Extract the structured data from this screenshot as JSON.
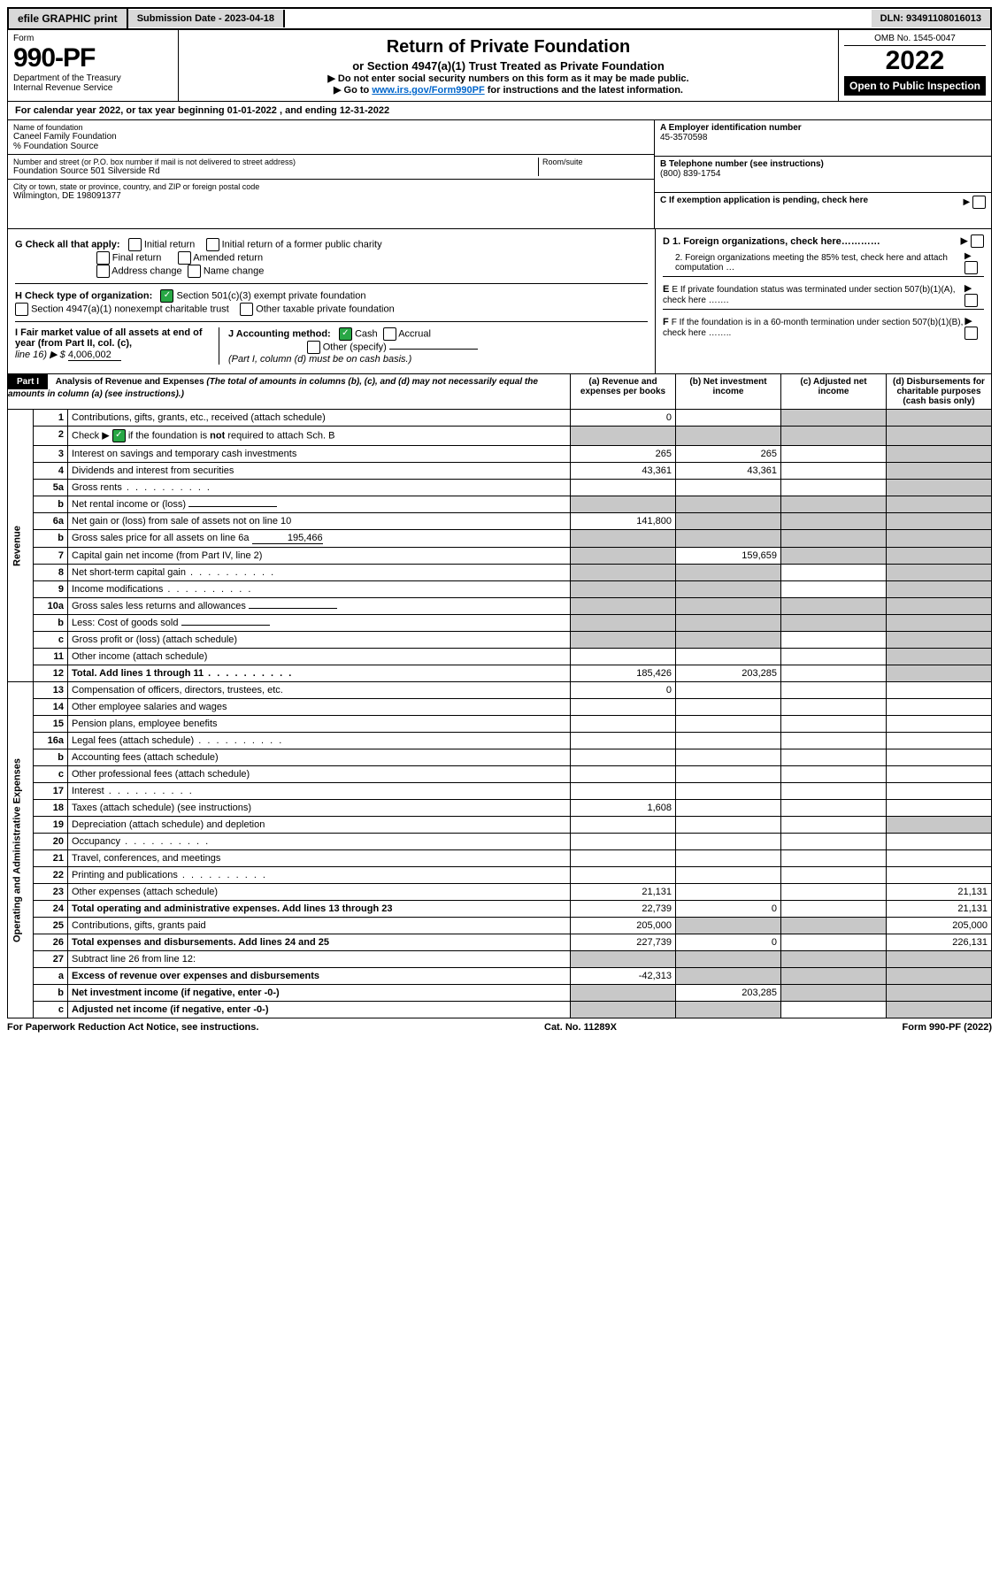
{
  "topbar": {
    "efile": "efile GRAPHIC print",
    "submission_label": "Submission Date - 2023-04-18",
    "dln": "DLN: 93491108016013"
  },
  "header": {
    "form_label": "Form",
    "form_number": "990-PF",
    "dept": "Department of the Treasury",
    "irs": "Internal Revenue Service",
    "title": "Return of Private Foundation",
    "subtitle": "or Section 4947(a)(1) Trust Treated as Private Foundation",
    "note1": "▶ Do not enter social security numbers on this form as it may be made public.",
    "note2_pre": "▶ Go to ",
    "note2_link": "www.irs.gov/Form990PF",
    "note2_post": " for instructions and the latest information.",
    "omb": "OMB No. 1545-0047",
    "year": "2022",
    "open": "Open to Public Inspection"
  },
  "calendar": "For calendar year 2022, or tax year beginning 01-01-2022 , and ending 12-31-2022",
  "info": {
    "name_lbl": "Name of foundation",
    "name": "Caneel Family Foundation",
    "pct": "% Foundation Source",
    "addr_lbl": "Number and street (or P.O. box number if mail is not delivered to street address)",
    "addr": "Foundation Source 501 Silverside Rd",
    "room_lbl": "Room/suite",
    "city_lbl": "City or town, state or province, country, and ZIP or foreign postal code",
    "city": "Wilmington, DE 198091377",
    "a_lbl": "A Employer identification number",
    "a_val": "45-3570598",
    "b_lbl": "B Telephone number (see instructions)",
    "b_val": "(800) 839-1754",
    "c_lbl": "C If exemption application is pending, check here"
  },
  "g": {
    "label": "G Check all that apply:",
    "initial": "Initial return",
    "final": "Final return",
    "addr": "Address change",
    "initial_former": "Initial return of a former public charity",
    "amended": "Amended return",
    "name": "Name change"
  },
  "h": {
    "label": "H Check type of organization:",
    "opt1": "Section 501(c)(3) exempt private foundation",
    "opt2": "Section 4947(a)(1) nonexempt charitable trust",
    "opt3": "Other taxable private foundation"
  },
  "d": {
    "d1": "D 1. Foreign organizations, check here…………",
    "d2": "2. Foreign organizations meeting the 85% test, check here and attach computation …",
    "e": "E If private foundation status was terminated under section 507(b)(1)(A), check here …….",
    "f": "F If the foundation is in a 60-month termination under section 507(b)(1)(B), check here …….."
  },
  "i": {
    "label": "I Fair market value of all assets at end of year (from Part II, col. (c),",
    "line16": "line 16) ▶ $",
    "val": "4,006,002"
  },
  "j": {
    "label": "J Accounting method:",
    "cash": "Cash",
    "accrual": "Accrual",
    "other": "Other (specify)",
    "note": "(Part I, column (d) must be on cash basis.)"
  },
  "part1": {
    "hdr": "Part I",
    "title": "Analysis of Revenue and Expenses",
    "note": " (The total of amounts in columns (b), (c), and (d) may not necessarily equal the amounts in column (a) (see instructions).)",
    "col_a": "(a) Revenue and expenses per books",
    "col_b": "(b) Net investment income",
    "col_c": "(c) Adjusted net income",
    "col_d": "(d) Disbursements for charitable purposes (cash basis only)"
  },
  "sections": {
    "revenue": "Revenue",
    "expenses": "Operating and Administrative Expenses"
  },
  "rows": [
    {
      "n": "1",
      "d": "Contributions, gifts, grants, etc., received (attach schedule)",
      "a": "0",
      "b": "",
      "c": "g",
      "dd": "g"
    },
    {
      "n": "2",
      "d": "Check ▶ ☑ if the foundation is not required to attach Sch. B",
      "a": "g",
      "b": "g",
      "c": "g",
      "dd": "g",
      "bold": false,
      "check": true
    },
    {
      "n": "3",
      "d": "Interest on savings and temporary cash investments",
      "a": "265",
      "b": "265",
      "c": "",
      "dd": "g"
    },
    {
      "n": "4",
      "d": "Dividends and interest from securities",
      "a": "43,361",
      "b": "43,361",
      "c": "",
      "dd": "g"
    },
    {
      "n": "5a",
      "d": "Gross rents",
      "a": "",
      "b": "",
      "c": "",
      "dd": "g",
      "dots": true
    },
    {
      "n": "b",
      "d": "Net rental income or (loss)",
      "a": "g",
      "b": "g",
      "c": "g",
      "dd": "g",
      "inline_ul": true
    },
    {
      "n": "6a",
      "d": "Net gain or (loss) from sale of assets not on line 10",
      "a": "141,800",
      "b": "g",
      "c": "g",
      "dd": "g"
    },
    {
      "n": "b",
      "d": "Gross sales price for all assets on line 6a",
      "a": "g",
      "b": "g",
      "c": "g",
      "dd": "g",
      "inline_val": "195,466"
    },
    {
      "n": "7",
      "d": "Capital gain net income (from Part IV, line 2)",
      "a": "g",
      "b": "159,659",
      "c": "g",
      "dd": "g"
    },
    {
      "n": "8",
      "d": "Net short-term capital gain",
      "a": "g",
      "b": "g",
      "c": "",
      "dd": "g",
      "dots": true
    },
    {
      "n": "9",
      "d": "Income modifications",
      "a": "g",
      "b": "g",
      "c": "",
      "dd": "g",
      "dots": true
    },
    {
      "n": "10a",
      "d": "Gross sales less returns and allowances",
      "a": "g",
      "b": "g",
      "c": "g",
      "dd": "g",
      "inline_ul": true
    },
    {
      "n": "b",
      "d": "Less: Cost of goods sold",
      "a": "g",
      "b": "g",
      "c": "g",
      "dd": "g",
      "inline_ul": true
    },
    {
      "n": "c",
      "d": "Gross profit or (loss) (attach schedule)",
      "a": "g",
      "b": "g",
      "c": "",
      "dd": "g"
    },
    {
      "n": "11",
      "d": "Other income (attach schedule)",
      "a": "",
      "b": "",
      "c": "",
      "dd": "g"
    },
    {
      "n": "12",
      "d": "Total. Add lines 1 through 11",
      "a": "185,426",
      "b": "203,285",
      "c": "",
      "dd": "g",
      "bold": true,
      "dots": true
    },
    {
      "n": "13",
      "d": "Compensation of officers, directors, trustees, etc.",
      "a": "0",
      "b": "",
      "c": "",
      "dd": ""
    },
    {
      "n": "14",
      "d": "Other employee salaries and wages",
      "a": "",
      "b": "",
      "c": "",
      "dd": ""
    },
    {
      "n": "15",
      "d": "Pension plans, employee benefits",
      "a": "",
      "b": "",
      "c": "",
      "dd": ""
    },
    {
      "n": "16a",
      "d": "Legal fees (attach schedule)",
      "a": "",
      "b": "",
      "c": "",
      "dd": "",
      "dots": true
    },
    {
      "n": "b",
      "d": "Accounting fees (attach schedule)",
      "a": "",
      "b": "",
      "c": "",
      "dd": ""
    },
    {
      "n": "c",
      "d": "Other professional fees (attach schedule)",
      "a": "",
      "b": "",
      "c": "",
      "dd": ""
    },
    {
      "n": "17",
      "d": "Interest",
      "a": "",
      "b": "",
      "c": "",
      "dd": "",
      "dots": true
    },
    {
      "n": "18",
      "d": "Taxes (attach schedule) (see instructions)",
      "a": "1,608",
      "b": "",
      "c": "",
      "dd": ""
    },
    {
      "n": "19",
      "d": "Depreciation (attach schedule) and depletion",
      "a": "",
      "b": "",
      "c": "",
      "dd": "g"
    },
    {
      "n": "20",
      "d": "Occupancy",
      "a": "",
      "b": "",
      "c": "",
      "dd": "",
      "dots": true
    },
    {
      "n": "21",
      "d": "Travel, conferences, and meetings",
      "a": "",
      "b": "",
      "c": "",
      "dd": ""
    },
    {
      "n": "22",
      "d": "Printing and publications",
      "a": "",
      "b": "",
      "c": "",
      "dd": "",
      "dots": true
    },
    {
      "n": "23",
      "d": "Other expenses (attach schedule)",
      "a": "21,131",
      "b": "",
      "c": "",
      "dd": "21,131"
    },
    {
      "n": "24",
      "d": "Total operating and administrative expenses. Add lines 13 through 23",
      "a": "22,739",
      "b": "0",
      "c": "",
      "dd": "21,131",
      "bold": true
    },
    {
      "n": "25",
      "d": "Contributions, gifts, grants paid",
      "a": "205,000",
      "b": "g",
      "c": "g",
      "dd": "205,000"
    },
    {
      "n": "26",
      "d": "Total expenses and disbursements. Add lines 24 and 25",
      "a": "227,739",
      "b": "0",
      "c": "",
      "dd": "226,131",
      "bold": true
    },
    {
      "n": "27",
      "d": "Subtract line 26 from line 12:",
      "a": "g",
      "b": "g",
      "c": "g",
      "dd": "g"
    },
    {
      "n": "a",
      "d": "Excess of revenue over expenses and disbursements",
      "a": "-42,313",
      "b": "g",
      "c": "g",
      "dd": "g",
      "bold": true
    },
    {
      "n": "b",
      "d": "Net investment income (if negative, enter -0-)",
      "a": "g",
      "b": "203,285",
      "c": "g",
      "dd": "g",
      "bold": true
    },
    {
      "n": "c",
      "d": "Adjusted net income (if negative, enter -0-)",
      "a": "g",
      "b": "g",
      "c": "",
      "dd": "g",
      "bold": true
    }
  ],
  "footer": {
    "left": "For Paperwork Reduction Act Notice, see instructions.",
    "mid": "Cat. No. 11289X",
    "right": "Form 990-PF (2022)"
  },
  "colors": {
    "grey": "#c8c8c8",
    "link": "#0066cc",
    "check_green": "#28a745"
  }
}
